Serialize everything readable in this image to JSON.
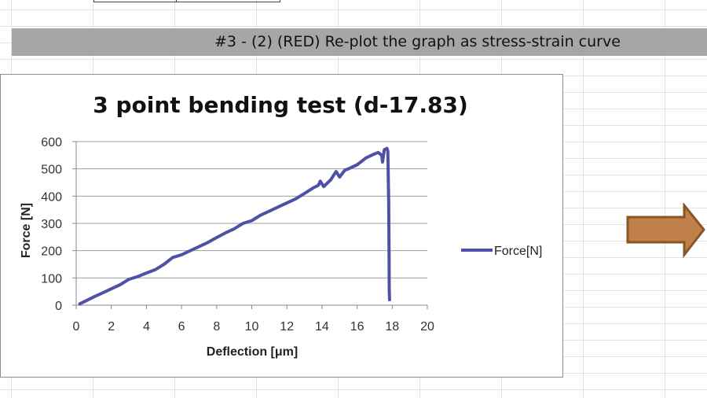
{
  "banner": {
    "text": "#3 - (2) (RED) Re-plot the graph as stress-strain curve"
  },
  "colors": {
    "series": "#4f51a6",
    "banner_bg": "#a6a6a6",
    "arrow_fill": "#c0804a",
    "arrow_stroke": "#8a5525"
  },
  "arrow": {
    "icon": "right-arrow-icon"
  },
  "chart_data": {
    "type": "line",
    "title": "3 point bending test (d-17.83)",
    "xlabel": "Deflection [μm]",
    "ylabel": "Force [N]",
    "xlim": [
      0,
      20
    ],
    "ylim": [
      0,
      600
    ],
    "xticks": [
      0,
      2,
      4,
      6,
      8,
      10,
      12,
      14,
      16,
      18,
      20
    ],
    "yticks": [
      0,
      100,
      200,
      300,
      400,
      500,
      600
    ],
    "grid": "horizontal",
    "legend": "right",
    "series": [
      {
        "name": "Force[N]",
        "x": [
          0.2,
          1.0,
          2.0,
          2.5,
          3.0,
          3.5,
          4.0,
          4.5,
          5.0,
          5.5,
          6.0,
          6.5,
          7.0,
          7.5,
          8.0,
          8.5,
          9.0,
          9.5,
          10.0,
          10.5,
          11.0,
          11.5,
          12.0,
          12.5,
          13.0,
          13.5,
          13.8,
          13.9,
          14.1,
          14.5,
          14.7,
          14.8,
          15.0,
          15.3,
          15.5,
          16.0,
          16.5,
          17.0,
          17.2,
          17.4,
          17.45,
          17.55,
          17.7,
          17.75,
          17.8,
          17.82,
          17.83,
          17.85
        ],
        "y": [
          5,
          30,
          60,
          75,
          95,
          105,
          118,
          130,
          150,
          175,
          185,
          200,
          215,
          230,
          248,
          265,
          280,
          300,
          310,
          330,
          345,
          360,
          375,
          390,
          410,
          430,
          440,
          455,
          435,
          460,
          480,
          490,
          470,
          495,
          500,
          515,
          540,
          555,
          560,
          550,
          525,
          570,
          575,
          565,
          380,
          180,
          60,
          20
        ]
      }
    ]
  }
}
